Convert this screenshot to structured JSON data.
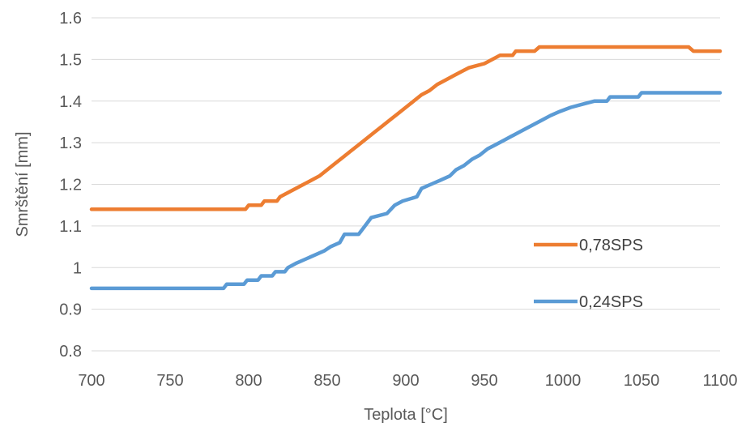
{
  "chart_data": {
    "type": "line",
    "xlabel": "Teplota [°C]",
    "ylabel": "Smrštění [mm]",
    "xlim": [
      700,
      1100
    ],
    "ylim": [
      0.8,
      1.6
    ],
    "x_ticks": [
      "700",
      "750",
      "800",
      "850",
      "900",
      "950",
      "1000",
      "1050",
      "1100"
    ],
    "y_ticks": [
      "0.8",
      "0.9",
      "1",
      "1.1",
      "1.2",
      "1.3",
      "1.4",
      "1.5",
      "1.6"
    ],
    "grid": "horizontal",
    "legend": "right",
    "series": [
      {
        "name": "0,78SPS",
        "color": "#ED7D31",
        "points": [
          [
            700,
            1.14
          ],
          [
            798,
            1.14
          ],
          [
            800,
            1.15
          ],
          [
            808,
            1.15
          ],
          [
            810,
            1.16
          ],
          [
            818,
            1.16
          ],
          [
            820,
            1.17
          ],
          [
            825,
            1.18
          ],
          [
            830,
            1.19
          ],
          [
            835,
            1.2
          ],
          [
            840,
            1.21
          ],
          [
            845,
            1.22
          ],
          [
            850,
            1.235
          ],
          [
            855,
            1.25
          ],
          [
            860,
            1.265
          ],
          [
            865,
            1.28
          ],
          [
            870,
            1.295
          ],
          [
            875,
            1.31
          ],
          [
            880,
            1.325
          ],
          [
            885,
            1.34
          ],
          [
            890,
            1.355
          ],
          [
            895,
            1.37
          ],
          [
            900,
            1.385
          ],
          [
            905,
            1.4
          ],
          [
            910,
            1.415
          ],
          [
            915,
            1.425
          ],
          [
            920,
            1.44
          ],
          [
            925,
            1.45
          ],
          [
            930,
            1.46
          ],
          [
            935,
            1.47
          ],
          [
            940,
            1.48
          ],
          [
            945,
            1.485
          ],
          [
            950,
            1.49
          ],
          [
            955,
            1.5
          ],
          [
            960,
            1.51
          ],
          [
            968,
            1.51
          ],
          [
            970,
            1.52
          ],
          [
            982,
            1.52
          ],
          [
            985,
            1.53
          ],
          [
            1080,
            1.53
          ],
          [
            1083,
            1.52
          ],
          [
            1100,
            1.52
          ]
        ]
      },
      {
        "name": "0,24SPS",
        "color": "#5B9BD5",
        "points": [
          [
            700,
            0.95
          ],
          [
            784,
            0.95
          ],
          [
            786,
            0.96
          ],
          [
            797,
            0.96
          ],
          [
            799,
            0.97
          ],
          [
            806,
            0.97
          ],
          [
            808,
            0.98
          ],
          [
            815,
            0.98
          ],
          [
            817,
            0.99
          ],
          [
            823,
            0.99
          ],
          [
            825,
            1.0
          ],
          [
            830,
            1.01
          ],
          [
            836,
            1.02
          ],
          [
            842,
            1.03
          ],
          [
            848,
            1.04
          ],
          [
            852,
            1.05
          ],
          [
            858,
            1.06
          ],
          [
            861,
            1.08
          ],
          [
            870,
            1.08
          ],
          [
            874,
            1.1
          ],
          [
            878,
            1.12
          ],
          [
            888,
            1.13
          ],
          [
            893,
            1.15
          ],
          [
            898,
            1.16
          ],
          [
            907,
            1.17
          ],
          [
            910,
            1.19
          ],
          [
            916,
            1.2
          ],
          [
            922,
            1.21
          ],
          [
            928,
            1.22
          ],
          [
            932,
            1.235
          ],
          [
            937,
            1.245
          ],
          [
            942,
            1.26
          ],
          [
            947,
            1.27
          ],
          [
            952,
            1.285
          ],
          [
            957,
            1.295
          ],
          [
            962,
            1.305
          ],
          [
            967,
            1.315
          ],
          [
            972,
            1.325
          ],
          [
            977,
            1.335
          ],
          [
            982,
            1.345
          ],
          [
            987,
            1.355
          ],
          [
            992,
            1.365
          ],
          [
            998,
            1.375
          ],
          [
            1005,
            1.385
          ],
          [
            1015,
            1.395
          ],
          [
            1020,
            1.4
          ],
          [
            1028,
            1.4
          ],
          [
            1030,
            1.41
          ],
          [
            1048,
            1.41
          ],
          [
            1050,
            1.42
          ],
          [
            1100,
            1.42
          ]
        ]
      }
    ]
  }
}
